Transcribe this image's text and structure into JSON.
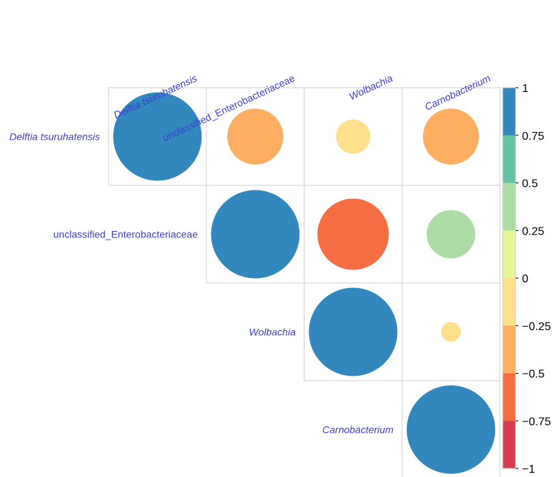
{
  "chart_data": {
    "type": "heatmap",
    "subtype": "correlation-upper-triangle-circles",
    "variables": [
      {
        "name": "Delftia tsuruhatensis",
        "italic": true
      },
      {
        "name": "unclassified_Enterobacteriaceae",
        "italic": false
      },
      {
        "name": "Wolbachia",
        "italic": true
      },
      {
        "name": "Carnobacterium",
        "italic": true
      }
    ],
    "matrix": [
      [
        1.0,
        -0.4,
        -0.15,
        -0.4
      ],
      [
        null,
        1.0,
        -0.65,
        0.3
      ],
      [
        null,
        null,
        1.0,
        -0.05
      ],
      [
        null,
        null,
        null,
        1.0
      ]
    ],
    "colorbar": {
      "range": [
        -1,
        1
      ],
      "ticks": [
        "1",
        "0.75",
        "0.5",
        "0.25",
        "0",
        "−0.25",
        "−0.5",
        "−0.75",
        "−1"
      ],
      "bins": [
        {
          "from": 0.75,
          "to": 1.0,
          "color": "#3288bd"
        },
        {
          "from": 0.5,
          "to": 0.75,
          "color": "#66c2a5"
        },
        {
          "from": 0.25,
          "to": 0.5,
          "color": "#abdda4"
        },
        {
          "from": 0.0,
          "to": 0.25,
          "color": "#e6f598"
        },
        {
          "from": -0.25,
          "to": 0.0,
          "color": "#fee08b"
        },
        {
          "from": -0.5,
          "to": -0.25,
          "color": "#fdae61"
        },
        {
          "from": -0.75,
          "to": -0.5,
          "color": "#f46d43"
        },
        {
          "from": -1.0,
          "to": -0.75,
          "color": "#d53e4f"
        }
      ]
    },
    "legend_position": "right"
  }
}
